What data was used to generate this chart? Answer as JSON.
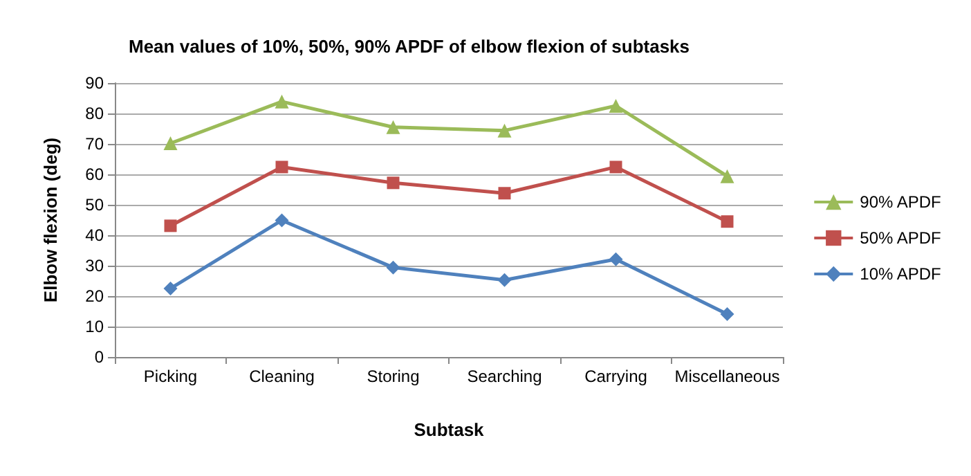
{
  "chart_data": {
    "type": "line",
    "title": "Mean values of 10%, 50%, 90% APDF of elbow flexion of subtasks",
    "xlabel": "Subtask",
    "ylabel": "Elbow flexion (deg)",
    "categories": [
      "Picking",
      "Cleaning",
      "Storing",
      "Searching",
      "Carrying",
      "Miscellaneous"
    ],
    "series": [
      {
        "name": "90% APDF",
        "color": "#9bbb59",
        "marker": "triangle",
        "values": [
          70.2,
          83.9,
          75.5,
          74.4,
          82.5,
          59.4
        ]
      },
      {
        "name": "50% APDF",
        "color": "#c0504d",
        "marker": "square",
        "values": [
          43.1,
          62.4,
          57.2,
          53.8,
          62.4,
          44.5
        ]
      },
      {
        "name": "10% APDF",
        "color": "#4f81bd",
        "marker": "diamond",
        "values": [
          22.5,
          44.9,
          29.4,
          25.3,
          32.1,
          14.1
        ]
      }
    ],
    "ylim": [
      0,
      90
    ],
    "yticks": [
      0,
      10,
      20,
      30,
      40,
      50,
      60,
      70,
      80,
      90
    ],
    "grid": "y",
    "legend": "right",
    "line_style": "solid"
  }
}
